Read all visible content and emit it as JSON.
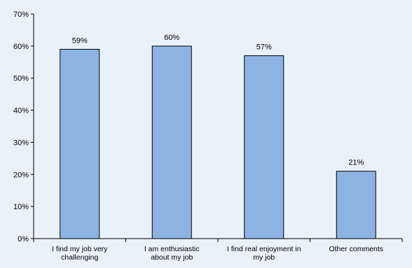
{
  "chart_data": {
    "type": "bar",
    "categories": [
      [
        "I find my job very",
        "challenging"
      ],
      [
        "I am enthusiastic",
        "about my job"
      ],
      [
        "I find real enjoyment in",
        "my job"
      ],
      [
        "Other comments"
      ]
    ],
    "values": [
      59,
      60,
      57,
      21
    ],
    "value_labels": [
      "59%",
      "60%",
      "57%",
      "21%"
    ],
    "y_ticks": [
      "0%",
      "10%",
      "20%",
      "30%",
      "40%",
      "50%",
      "60%",
      "70%"
    ],
    "ylim": [
      0,
      70
    ],
    "grid": false,
    "colors": {
      "bar": "#8db3e2",
      "background": "#e9f1fb"
    }
  }
}
